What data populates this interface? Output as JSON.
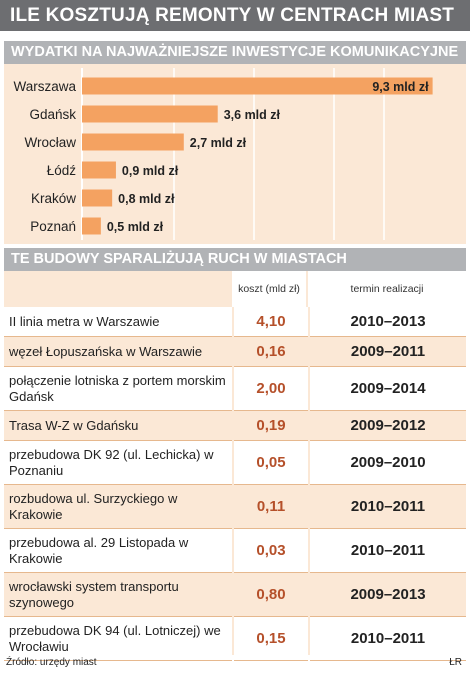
{
  "title": "ILE KOSZTUJĄ REMONTY W CENTRACH MIAST",
  "chart_section_title": "WYDATKI NA NAJWAŻNIEJSZE INWESTYCJE KOMUNIKACYJNE",
  "chart_data": {
    "type": "bar",
    "orientation": "horizontal",
    "categories": [
      "Warszawa",
      "Gdańsk",
      "Wrocław",
      "Łódź",
      "Kraków",
      "Poznań"
    ],
    "values": [
      9.3,
      3.6,
      2.7,
      0.9,
      0.8,
      0.5
    ],
    "value_labels": [
      "9,3 mld zł",
      "3,6 mld zł",
      "2,7 mld zł",
      "0,9 mld zł",
      "0,8 mld zł",
      "0,5 mld zł"
    ],
    "unit": "mld zł",
    "xlim": [
      0,
      10
    ],
    "grid": true,
    "colors": {
      "bar": "#f4a261",
      "background": "#fbe8d6",
      "grid": "#ffffff"
    }
  },
  "table_section_title": "TE BUDOWY SPARALIŻUJĄ RUCH W MIASTACH",
  "table": {
    "headers": {
      "cost": "koszt (mld zł)",
      "term": "termin realizacji"
    },
    "rows": [
      {
        "name": "II linia metra w Warszawie",
        "cost": "4,10",
        "term": "2010–2013"
      },
      {
        "name": "węzeł Łopuszańska w Warszawie",
        "cost": "0,16",
        "term": "2009–2011"
      },
      {
        "name": "połączenie lotniska z portem morskim Gdańsk",
        "cost": "2,00",
        "term": "2009–2014"
      },
      {
        "name": "Trasa W-Z w Gdańsku",
        "cost": "0,19",
        "term": "2009–2012"
      },
      {
        "name": "przebudowa DK 92 (ul. Lechicka) w Poznaniu",
        "cost": "0,05",
        "term": "2009–2010"
      },
      {
        "name": "rozbudowa ul. Surzyckiego w Krakowie",
        "cost": "0,11",
        "term": "2010–2011"
      },
      {
        "name": "przebudowa al. 29 Listopada w Krakowie",
        "cost": "0,03",
        "term": "2010–2011"
      },
      {
        "name": "wrocławski system transportu szynowego",
        "cost": "0,80",
        "term": "2009–2013"
      },
      {
        "name": "przebudowa DK 94 (ul. Lotniczej) we Wrocławiu",
        "cost": "0,15",
        "term": "2010–2011"
      }
    ]
  },
  "footer": {
    "source": "Źródło: urzędy miast",
    "credit": "ŁR"
  },
  "colors": {
    "header_dark": "#6d6e71",
    "header_light": "#b1b3b6",
    "accent_value": "#b5502a"
  }
}
